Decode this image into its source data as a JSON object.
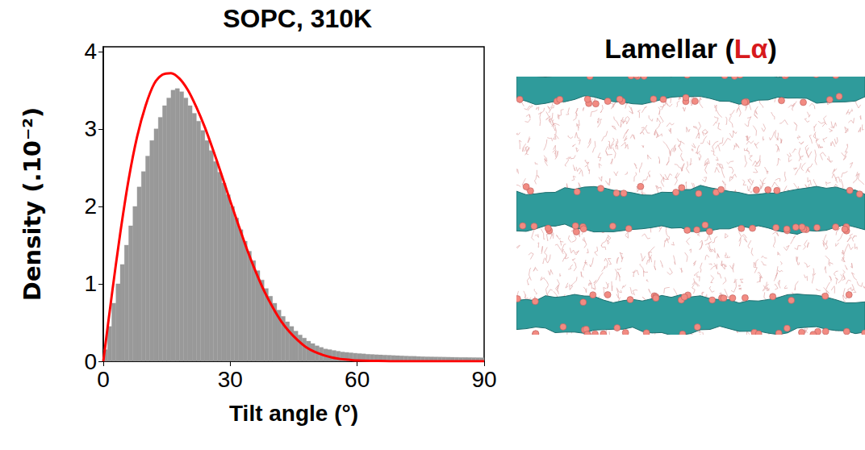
{
  "chart_data": {
    "type": "histogram",
    "title": "SOPC, 310K",
    "x_label": "Tilt angle (°)",
    "y_label": "Density (.10⁻²)",
    "xlim": [
      0,
      90
    ],
    "xticks": [
      0,
      30,
      60,
      90
    ],
    "ylim": [
      0,
      4.06
    ],
    "yticks": [
      0,
      1,
      2,
      3,
      4
    ],
    "series": [
      {
        "type": "histogram",
        "color": "#999999",
        "bins": [
          0,
          1,
          2,
          3,
          4,
          5,
          6,
          7,
          8,
          9,
          10,
          11,
          12,
          13,
          14,
          15,
          16,
          17,
          18,
          19,
          20,
          21,
          22,
          23,
          24,
          25,
          26,
          27,
          28,
          29,
          30,
          31,
          32,
          33,
          34,
          35,
          36,
          37,
          38,
          39,
          40,
          41,
          42,
          43,
          44,
          45,
          46,
          47,
          48,
          49,
          50,
          51,
          52,
          53,
          54,
          55,
          56,
          57,
          58,
          59,
          60,
          61,
          62,
          63,
          64,
          65,
          66,
          67,
          68,
          69,
          70,
          71,
          72,
          73,
          74,
          75,
          76,
          77,
          78,
          79,
          80,
          81,
          82,
          83,
          84,
          85,
          86,
          87,
          88,
          89,
          90
        ],
        "values": [
          0.15,
          0.45,
          0.75,
          1.0,
          1.25,
          1.5,
          1.75,
          2.0,
          2.25,
          2.45,
          2.65,
          2.85,
          3.0,
          3.15,
          3.3,
          3.4,
          3.5,
          3.52,
          3.48,
          3.4,
          3.3,
          3.2,
          3.1,
          2.98,
          2.85,
          2.72,
          2.58,
          2.44,
          2.3,
          2.15,
          2.0,
          1.85,
          1.7,
          1.55,
          1.42,
          1.3,
          1.17,
          1.05,
          0.94,
          0.84,
          0.75,
          0.66,
          0.58,
          0.51,
          0.45,
          0.39,
          0.34,
          0.3,
          0.26,
          0.23,
          0.2,
          0.18,
          0.16,
          0.15,
          0.14,
          0.13,
          0.12,
          0.115,
          0.11,
          0.105,
          0.1,
          0.095,
          0.09,
          0.088,
          0.085,
          0.082,
          0.08,
          0.078,
          0.075,
          0.073,
          0.07,
          0.068,
          0.066,
          0.064,
          0.062,
          0.06,
          0.058,
          0.057,
          0.056,
          0.055,
          0.054,
          0.053,
          0.052,
          0.051,
          0.05,
          0.05,
          0.049,
          0.048,
          0.047,
          0.046
        ]
      },
      {
        "type": "line",
        "color": "#ff0000",
        "x": [
          0,
          2,
          4,
          6,
          8,
          10,
          12,
          14,
          16,
          18,
          20,
          22,
          24,
          26,
          28,
          30,
          32,
          34,
          36,
          38,
          40,
          42,
          44,
          46,
          48,
          50,
          52,
          54,
          56,
          58,
          60,
          65,
          70,
          80,
          90
        ],
        "values": [
          0,
          0.85,
          1.65,
          2.35,
          2.9,
          3.3,
          3.58,
          3.7,
          3.72,
          3.65,
          3.5,
          3.28,
          3.02,
          2.72,
          2.4,
          2.07,
          1.75,
          1.44,
          1.16,
          0.91,
          0.7,
          0.52,
          0.38,
          0.27,
          0.18,
          0.12,
          0.08,
          0.05,
          0.03,
          0.02,
          0.01,
          0.005,
          0,
          0,
          0
        ]
      }
    ]
  },
  "panel": {
    "title": [
      {
        "text": "Lamellar ("
      },
      {
        "text": "Lα",
        "color": "#d7191c"
      },
      {
        "text": ")"
      }
    ]
  }
}
